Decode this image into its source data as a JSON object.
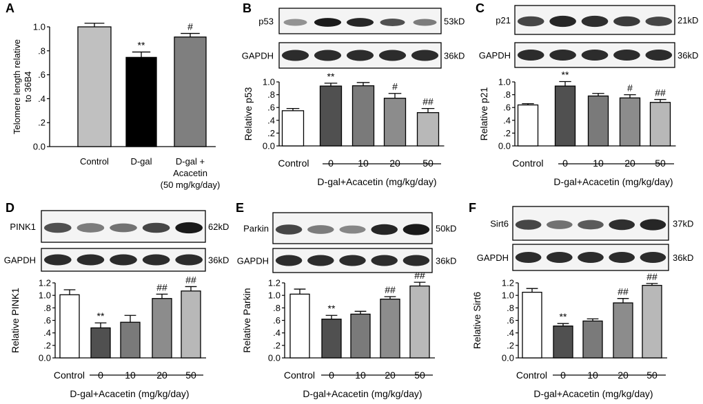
{
  "panel_letters": [
    "A",
    "B",
    "C",
    "D",
    "E",
    "F"
  ],
  "chart_data": [
    {
      "panel": "A",
      "type": "bar",
      "ylabel": "Telomere length relative to 36B4",
      "ylabel_lines": [
        "Telomere length relative",
        "to 36B4"
      ],
      "categories": [
        "Control",
        "D-gal",
        "D-gal + Acacetin (50 mg/kg/day)"
      ],
      "category_lines": [
        [
          "Control"
        ],
        [
          "D-gal"
        ],
        [
          "D-gal +",
          "Acacetin",
          "(50 mg/kg/day)"
        ]
      ],
      "values": [
        1.0,
        0.745,
        0.915
      ],
      "errors": [
        0.03,
        0.045,
        0.03
      ],
      "annotations": [
        "",
        "**",
        "#"
      ],
      "bar_colors": [
        "#c0c0c0",
        "#000000",
        "#7f7f7f"
      ],
      "ylim": [
        0,
        1.0
      ],
      "yticks": [
        "0.0",
        ".2",
        ".4",
        ".6",
        ".8",
        "1.0"
      ],
      "grid": false
    },
    {
      "panel": "B",
      "type": "bar",
      "blot": {
        "target": "p53",
        "target_kd": "53kD",
        "control": "GAPDH",
        "control_kd": "36kD"
      },
      "ylabel": "Relative p53",
      "categories": [
        "Control",
        "0",
        "10",
        "20",
        "50"
      ],
      "xlabel": "D-gal+Acacetin (mg/kg/day)",
      "values": [
        0.55,
        0.935,
        0.94,
        0.745,
        0.52
      ],
      "errors": [
        0.035,
        0.045,
        0.05,
        0.075,
        0.065
      ],
      "annotations": [
        "",
        "**",
        "",
        "#",
        "##"
      ],
      "bar_colors": [
        "#ffffff",
        "#505050",
        "#7a7a7a",
        "#8c8c8c",
        "#b8b8b8"
      ],
      "ylim": [
        0,
        1.0
      ],
      "yticks": [
        "0.0",
        ".2",
        ".4",
        ".6",
        ".8",
        "1.0"
      ],
      "grid": false
    },
    {
      "panel": "C",
      "type": "bar",
      "blot": {
        "target": "p21",
        "target_kd": "21kD",
        "control": "GAPDH",
        "control_kd": "36kD"
      },
      "ylabel": "Relative p21",
      "categories": [
        "Control",
        "0",
        "10",
        "20",
        "50"
      ],
      "xlabel": "D-gal+Acacetin (mg/kg/day)",
      "values": [
        0.64,
        0.935,
        0.78,
        0.75,
        0.68
      ],
      "errors": [
        0.02,
        0.07,
        0.04,
        0.05,
        0.045
      ],
      "annotations": [
        "",
        "**",
        "",
        "#",
        "##"
      ],
      "bar_colors": [
        "#ffffff",
        "#505050",
        "#7a7a7a",
        "#8c8c8c",
        "#b8b8b8"
      ],
      "ylim": [
        0,
        1.0
      ],
      "yticks": [
        "0.0",
        ".2",
        ".4",
        ".6",
        ".8",
        "1.0"
      ],
      "grid": false
    },
    {
      "panel": "D",
      "type": "bar",
      "blot": {
        "target": "PINK1",
        "target_kd": "62kD",
        "control": "GAPDH",
        "control_kd": "36kD"
      },
      "ylabel": "Relative PINK1",
      "categories": [
        "Control",
        "0",
        "10",
        "20",
        "50"
      ],
      "xlabel": "D-gal+Acacetin (mg/kg/day)",
      "values": [
        1.01,
        0.48,
        0.57,
        0.95,
        1.07
      ],
      "errors": [
        0.08,
        0.08,
        0.11,
        0.07,
        0.07
      ],
      "annotations": [
        "",
        "**",
        "",
        "##",
        "##"
      ],
      "bar_colors": [
        "#ffffff",
        "#505050",
        "#7a7a7a",
        "#8c8c8c",
        "#b8b8b8"
      ],
      "ylim": [
        0,
        1.2
      ],
      "yticks": [
        "0.0",
        ".2",
        ".4",
        ".6",
        ".8",
        "1.0",
        "1.2"
      ],
      "grid": false
    },
    {
      "panel": "E",
      "type": "bar",
      "blot": {
        "target": "Parkin",
        "target_kd": "50kD",
        "control": "GAPDH",
        "control_kd": "36kD"
      },
      "ylabel": "Relative Parkin",
      "categories": [
        "Control",
        "0",
        "10",
        "20",
        "50"
      ],
      "xlabel": "D-gal+Acacetin (mg/kg/day)",
      "values": [
        1.02,
        0.62,
        0.7,
        0.94,
        1.15
      ],
      "errors": [
        0.08,
        0.06,
        0.045,
        0.04,
        0.06
      ],
      "annotations": [
        "",
        "**",
        "",
        "##",
        "##"
      ],
      "bar_colors": [
        "#ffffff",
        "#505050",
        "#7a7a7a",
        "#8c8c8c",
        "#b8b8b8"
      ],
      "ylim": [
        0,
        1.2
      ],
      "yticks": [
        "0.0",
        ".2",
        ".4",
        ".6",
        ".8",
        "1.0",
        "1.2"
      ],
      "grid": false
    },
    {
      "panel": "F",
      "type": "bar",
      "blot": {
        "target": "Sirt6",
        "target_kd": "37kD",
        "control": "GAPDH",
        "control_kd": "36kD"
      },
      "ylabel": "Relative Sirt6",
      "categories": [
        "Control",
        "0",
        "10",
        "20",
        "50"
      ],
      "xlabel": "D-gal+Acacetin (mg/kg/day)",
      "values": [
        1.05,
        0.51,
        0.59,
        0.88,
        1.16
      ],
      "errors": [
        0.06,
        0.04,
        0.035,
        0.07,
        0.03
      ],
      "annotations": [
        "",
        "**",
        "",
        "##",
        "##"
      ],
      "bar_colors": [
        "#ffffff",
        "#505050",
        "#7a7a7a",
        "#8c8c8c",
        "#b8b8b8"
      ],
      "ylim": [
        0,
        1.2
      ],
      "yticks": [
        "0.0",
        ".2",
        ".4",
        ".6",
        ".8",
        "1.0",
        "1.2"
      ],
      "grid": false
    }
  ]
}
